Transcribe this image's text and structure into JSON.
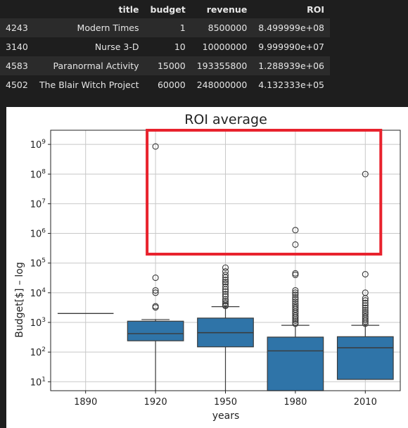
{
  "table": {
    "headers": [
      "",
      "title",
      "budget",
      "revenue",
      "ROI"
    ],
    "rows": [
      {
        "index": "4243",
        "title": "Modern Times",
        "budget": "1",
        "revenue": "8500000",
        "roi": "8.499999e+08"
      },
      {
        "index": "3140",
        "title": "Nurse 3-D",
        "budget": "10",
        "revenue": "10000000",
        "roi": "9.999990e+07"
      },
      {
        "index": "4583",
        "title": "Paranormal Activity",
        "budget": "15000",
        "revenue": "193355800",
        "roi": "1.288939e+06"
      },
      {
        "index": "4502",
        "title": "The Blair Witch Project",
        "budget": "60000",
        "revenue": "248000000",
        "roi": "4.132333e+05"
      }
    ]
  },
  "chart_data": {
    "type": "box",
    "title": "ROI average",
    "xlabel": "years",
    "ylabel": "Budget[$] – log",
    "yscale": "log",
    "ylim": [
      5,
      3000000000
    ],
    "grid": true,
    "categories": [
      "1890",
      "1920",
      "1950",
      "1980",
      "2010"
    ],
    "ytick_values": [
      10,
      100,
      1000,
      10000,
      100000,
      1000000,
      10000000,
      100000000,
      1000000000
    ],
    "ytick_labels": [
      {
        "base": "10",
        "exp": "1"
      },
      {
        "base": "10",
        "exp": "2"
      },
      {
        "base": "10",
        "exp": "3"
      },
      {
        "base": "10",
        "exp": "4"
      },
      {
        "base": "10",
        "exp": "5"
      },
      {
        "base": "10",
        "exp": "6"
      },
      {
        "base": "10",
        "exp": "7"
      },
      {
        "base": "10",
        "exp": "8"
      },
      {
        "base": "10",
        "exp": "9"
      }
    ],
    "boxes": [
      {
        "category": "1890",
        "whislo": 2000,
        "q1": 2000,
        "med": 2000,
        "q3": 2000,
        "whishi": 2000,
        "fliers": []
      },
      {
        "category": "1920",
        "whislo": 5,
        "q1": 240,
        "med": 420,
        "q3": 1100,
        "whishi": 1250,
        "fliers": [
          3200,
          3500,
          10000,
          12000,
          32000,
          850000000
        ]
      },
      {
        "category": "1950",
        "whislo": 5,
        "q1": 150,
        "med": 450,
        "q3": 1400,
        "whishi": 3400,
        "fliers": [
          3600,
          3900,
          4500,
          5200,
          6000,
          7500,
          9000,
          11000,
          13000,
          16000,
          20000,
          23000,
          27000,
          33000,
          40000,
          52000,
          70000
        ]
      },
      {
        "category": "1980",
        "whislo": 5,
        "q1": 5,
        "med": 110,
        "q3": 320,
        "whishi": 800,
        "fliers": [
          900,
          1000,
          1150,
          1300,
          1500,
          1700,
          2000,
          2300,
          2700,
          3100,
          3600,
          4200,
          5000,
          6000,
          7000,
          8500,
          10000,
          12000,
          40000,
          45000,
          420000,
          1290000
        ]
      },
      {
        "category": "2010",
        "whislo": 12,
        "q1": 12,
        "med": 140,
        "q3": 330,
        "whishi": 800,
        "fliers": [
          900,
          1050,
          1200,
          1400,
          1600,
          1900,
          2200,
          2600,
          3100,
          3700,
          4500,
          5500,
          6500,
          10000,
          42000,
          100000000
        ]
      }
    ],
    "box_color": "#2f74a8",
    "highlight": {
      "x_range": [
        "1920",
        "2010"
      ],
      "y_range": [
        200000,
        3000000000
      ],
      "color": "#e8222d"
    }
  }
}
